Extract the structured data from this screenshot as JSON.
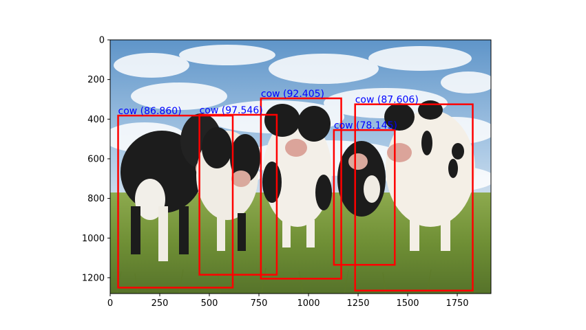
{
  "chart_data": {
    "type": "image-detections",
    "title": "",
    "xlabel": "",
    "ylabel": "",
    "image": {
      "width_units": 1920,
      "height_units": 1280,
      "description": "photo"
    },
    "xlim": [
      0,
      1920
    ],
    "ylim": [
      1280,
      0
    ],
    "x_ticks": [
      0,
      250,
      500,
      750,
      1000,
      1250,
      1500,
      1750
    ],
    "x_tick_labels": [
      "0",
      "250",
      "500",
      "750",
      "1000",
      "1250",
      "1500",
      "1750"
    ],
    "y_ticks": [
      0,
      200,
      400,
      600,
      800,
      1000,
      1200
    ],
    "y_tick_labels": [
      "0",
      "200",
      "400",
      "600",
      "800",
      "1000",
      "1200"
    ],
    "box_color": "#ff0000",
    "label_color": "#0000ff",
    "detections": [
      {
        "label": "cow (86.860)",
        "class": "cow",
        "score": 86.86,
        "x_min": 40,
        "y_min": 382,
        "x_max": 618,
        "y_max": 1250
      },
      {
        "label": "cow (97.546)",
        "class": "cow",
        "score": 97.546,
        "x_min": 450,
        "y_min": 378,
        "x_max": 840,
        "y_max": 1185
      },
      {
        "label": "cow (92.405)",
        "class": "cow",
        "score": 92.405,
        "x_min": 760,
        "y_min": 295,
        "x_max": 1165,
        "y_max": 1205
      },
      {
        "label": "cow (78.145)",
        "class": "cow",
        "score": 78.145,
        "x_min": 1128,
        "y_min": 455,
        "x_max": 1435,
        "y_max": 1135
      },
      {
        "label": "cow (87.606)",
        "class": "cow",
        "score": 87.606,
        "x_min": 1235,
        "y_min": 325,
        "x_max": 1828,
        "y_max": 1265
      }
    ]
  }
}
